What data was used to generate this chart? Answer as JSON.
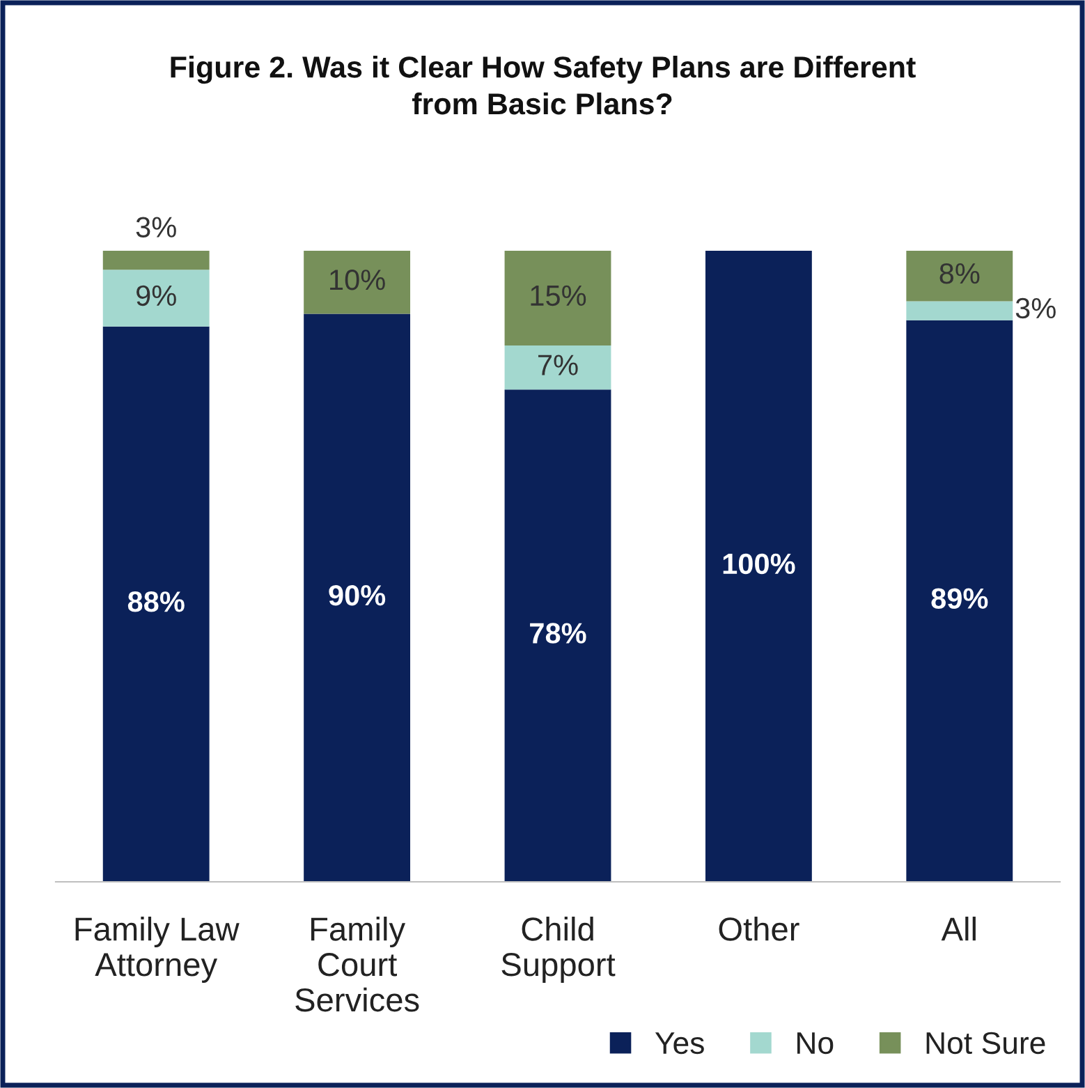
{
  "chart_data": {
    "type": "bar",
    "stacked": true,
    "title": "Figure 2. Was it Clear How Safety Plans are Different\nfrom Basic Plans?",
    "categories": [
      "Family Law\nAttorney",
      "Family\nCourt\nServices",
      "Child\nSupport",
      "Other",
      "All"
    ],
    "series": [
      {
        "name": "Yes",
        "color": "#0b2159",
        "values": [
          88,
          90,
          78,
          100,
          89
        ],
        "value_labels": [
          "88%",
          "90%",
          "78%",
          "100%",
          "89%"
        ]
      },
      {
        "name": "No",
        "color": "#a3d8cf",
        "values": [
          9,
          0,
          7,
          0,
          3
        ],
        "value_labels": [
          "9%",
          null,
          "7%",
          null,
          "3%"
        ]
      },
      {
        "name": "Not Sure",
        "color": "#77905a",
        "values": [
          3,
          10,
          15,
          0,
          8
        ],
        "value_labels": [
          "3%",
          "10%",
          "15%",
          null,
          "8%"
        ]
      }
    ],
    "legend": "bottom right",
    "grid": false
  }
}
